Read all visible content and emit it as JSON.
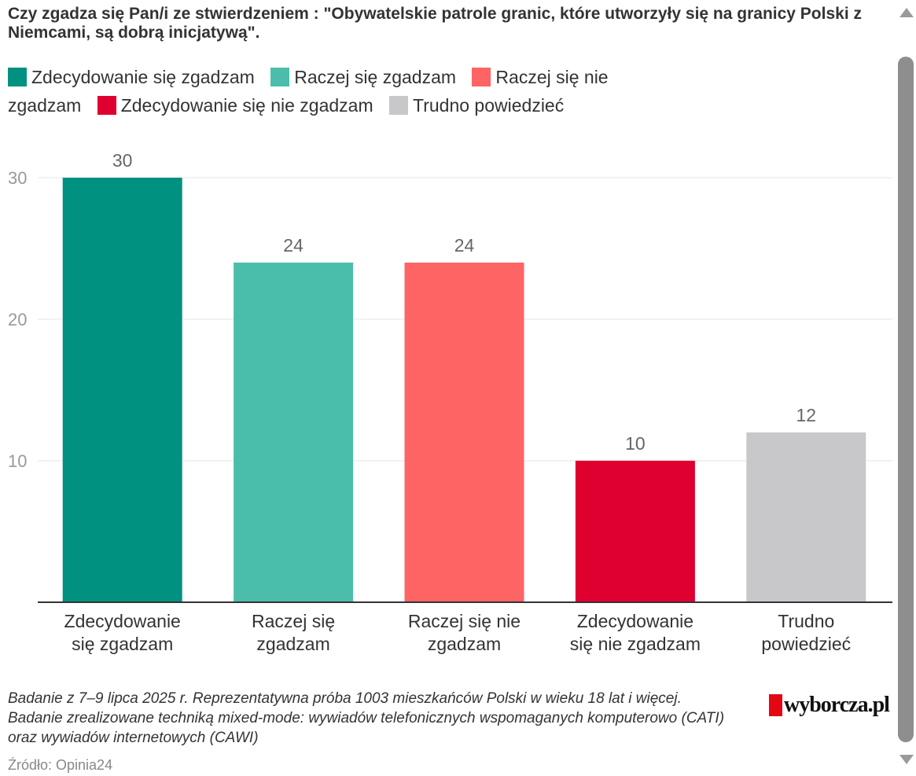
{
  "chart_data": {
    "type": "bar",
    "title": "Czy zgadza się Pan/i ze stwierdzeniem : \"Obywatelskie patrole granic, które utworzyły się na granicy Polski z Niemcami, są dobrą inicjatywą\".",
    "categories": [
      "Zdecydowanie się zgadzam",
      "Raczej się zgadzam",
      "Raczej się nie zgadzam",
      "Zdecydowanie się nie zgadzam",
      "Trudno powiedzieć"
    ],
    "category_labels": [
      [
        "Zdecydowanie",
        "się zgadzam"
      ],
      [
        "Raczej się",
        "zgadzam"
      ],
      [
        "Raczej się nie",
        "zgadzam"
      ],
      [
        "Zdecydowanie",
        "się nie zgadzam"
      ],
      [
        "Trudno",
        "powiedzieć"
      ]
    ],
    "values": [
      30,
      24,
      24,
      10,
      12
    ],
    "colors": [
      "#009180",
      "#4bbeab",
      "#ff6464",
      "#df0030",
      "#c8c8ca"
    ],
    "legend": [
      "Zdecydowanie się zgadzam",
      "Raczej się zgadzam",
      "Raczej się nie zgadzam",
      "Zdecydowanie się nie zgadzam",
      "Trudno powiedzieć"
    ],
    "legend_placement": "top-left",
    "yticks": [
      10,
      20,
      30
    ],
    "ylim": [
      0,
      32
    ],
    "xlabel": "",
    "ylabel": "",
    "grid": true
  },
  "footnote": "Badanie z 7–9 lipca 2025 r. Reprezentatywna próba 1003 mieszkańców Polski w wieku 18 lat i więcej. Badanie zrealizowane techniką mixed-mode: wywiadów telefonicznych wspomaganych komputerowo (CATI) oraz wywiadów internetowych (CAWI)",
  "source": "Źródło: Opinia24",
  "logo_text": "wyborcza.pl",
  "colors": {
    "text": "#333333",
    "axis_tick": "#999999",
    "value_label": "#666666",
    "grid": "#e6e6e6",
    "logo_red": "#e30613"
  }
}
